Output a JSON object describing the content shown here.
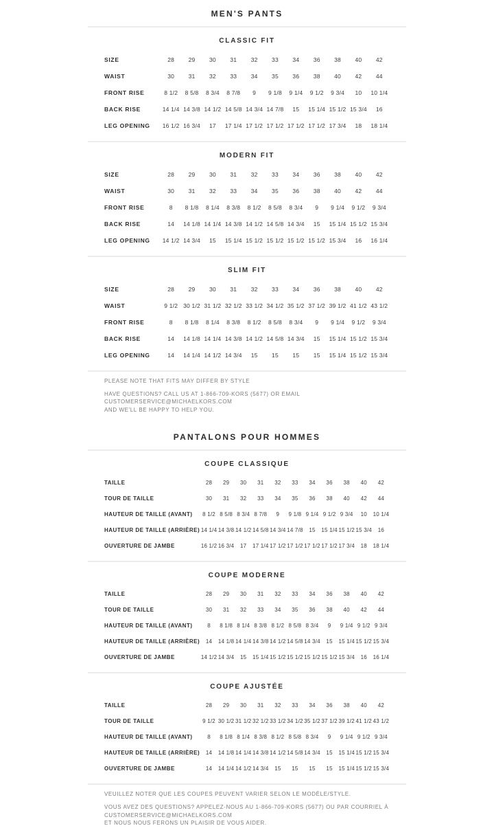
{
  "header_en": {
    "title": "MEN'S PANTS"
  },
  "header_fr": {
    "title": "PANTALONS POUR HOMMES"
  },
  "sections_en": [
    {
      "title": "CLASSIC FIT",
      "rows": [
        {
          "label": "SIZE",
          "values": [
            "28",
            "29",
            "30",
            "31",
            "32",
            "33",
            "34",
            "36",
            "38",
            "40",
            "42"
          ]
        },
        {
          "label": "WAIST",
          "values": [
            "30",
            "31",
            "32",
            "33",
            "34",
            "35",
            "36",
            "38",
            "40",
            "42",
            "44"
          ]
        },
        {
          "label": "FRONT RISE",
          "values": [
            "8 1/2",
            "8 5/8",
            "8 3/4",
            "8 7/8",
            "9",
            "9 1/8",
            "9 1/4",
            "9 1/2",
            "9 3/4",
            "10",
            "10 1/4"
          ]
        },
        {
          "label": "BACK RISE",
          "values": [
            "14 1/4",
            "14 3/8",
            "14 1/2",
            "14 5/8",
            "14 3/4",
            "14 7/8",
            "15",
            "15 1/4",
            "15 1/2",
            "15 3/4",
            "16"
          ]
        },
        {
          "label": "LEG OPENING",
          "values": [
            "16 1/2",
            "16 3/4",
            "17",
            "17 1/4",
            "17 1/2",
            "17 1/2",
            "17 1/2",
            "17 1/2",
            "17 3/4",
            "18",
            "18 1/4"
          ]
        }
      ]
    },
    {
      "title": "MODERN FIT",
      "rows": [
        {
          "label": "SIZE",
          "values": [
            "28",
            "29",
            "30",
            "31",
            "32",
            "33",
            "34",
            "36",
            "38",
            "40",
            "42"
          ]
        },
        {
          "label": "WAIST",
          "values": [
            "30",
            "31",
            "32",
            "33",
            "34",
            "35",
            "36",
            "38",
            "40",
            "42",
            "44"
          ]
        },
        {
          "label": "FRONT RISE",
          "values": [
            "8",
            "8 1/8",
            "8 1/4",
            "8 3/8",
            "8 1/2",
            "8 5/8",
            "8 3/4",
            "9",
            "9 1/4",
            "9 1/2",
            "9 3/4"
          ]
        },
        {
          "label": "BACK RISE",
          "values": [
            "14",
            "14 1/8",
            "14 1/4",
            "14 3/8",
            "14 1/2",
            "14 5/8",
            "14 3/4",
            "15",
            "15 1/4",
            "15 1/2",
            "15 3/4"
          ]
        },
        {
          "label": "LEG OPENING",
          "values": [
            "14 1/2",
            "14 3/4",
            "15",
            "15 1/4",
            "15 1/2",
            "15 1/2",
            "15 1/2",
            "15 1/2",
            "15 3/4",
            "16",
            "16 1/4"
          ]
        }
      ]
    },
    {
      "title": "SLIM FIT",
      "rows": [
        {
          "label": "SIZE",
          "values": [
            "28",
            "29",
            "30",
            "31",
            "32",
            "33",
            "34",
            "36",
            "38",
            "40",
            "42"
          ]
        },
        {
          "label": "WAIST",
          "values": [
            "9 1/2",
            "30 1/2",
            "31 1/2",
            "32 1/2",
            "33 1/2",
            "34 1/2",
            "35 1/2",
            "37 1/2",
            "39 1/2",
            "41 1/2",
            "43 1/2"
          ]
        },
        {
          "label": "FRONT RISE",
          "values": [
            "8",
            "8 1/8",
            "8 1/4",
            "8 3/8",
            "8 1/2",
            "8 5/8",
            "8 3/4",
            "9",
            "9 1/4",
            "9 1/2",
            "9 3/4"
          ]
        },
        {
          "label": "BACK RISE",
          "values": [
            "14",
            "14 1/8",
            "14 1/4",
            "14 3/8",
            "14 1/2",
            "14 5/8",
            "14 3/4",
            "15",
            "15 1/4",
            "15 1/2",
            "15 3/4"
          ]
        },
        {
          "label": "LEG OPENING",
          "values": [
            "14",
            "14 1/4",
            "14 1/2",
            "14 3/4",
            "15",
            "15",
            "15",
            "15",
            "15 1/4",
            "15 1/2",
            "15 3/4"
          ]
        }
      ]
    }
  ],
  "notes_en": {
    "fit_note": "PLEASE NOTE THAT FITS MAY DIFFER BY STYLE",
    "contact_line1": "HAVE QUESTIONS? CALL US AT 1-866-709-KORS (5677) OR EMAIL CUSTOMERSERVICE@MICHAELKORS.COM",
    "contact_line2": "AND WE'LL BE HAPPY TO HELP YOU."
  },
  "sections_fr": [
    {
      "title": "COUPE CLASSIQUE",
      "rows": [
        {
          "label": "TAILLE",
          "values": [
            "28",
            "29",
            "30",
            "31",
            "32",
            "33",
            "34",
            "36",
            "38",
            "40",
            "42"
          ]
        },
        {
          "label": "TOUR DE TAILLE",
          "values": [
            "30",
            "31",
            "32",
            "33",
            "34",
            "35",
            "36",
            "38",
            "40",
            "42",
            "44"
          ]
        },
        {
          "label": "HAUTEUR DE TAILLE (AVANT)",
          "values": [
            "8 1/2",
            "8 5/8",
            "8 3/4",
            "8 7/8",
            "9",
            "9 1/8",
            "9 1/4",
            "9 1/2",
            "9 3/4",
            "10",
            "10 1/4"
          ]
        },
        {
          "label": "HAUTEUR DE TAILLE (ARRIÈRE)",
          "values": [
            "14 1/4",
            "14 3/8",
            "14 1/2",
            "14 5/8",
            "14 3/4",
            "14 7/8",
            "15",
            "15 1/4",
            "15 1/2",
            "15 3/4",
            "16"
          ]
        },
        {
          "label": "OUVERTURE DE JAMBE",
          "values": [
            "16 1/2",
            "16 3/4",
            "17",
            "17 1/4",
            "17 1/2",
            "17 1/2",
            "17 1/2",
            "17 1/2",
            "17 3/4",
            "18",
            "18 1/4"
          ]
        }
      ]
    },
    {
      "title": "COUPE MODERNE",
      "rows": [
        {
          "label": "TAILLE",
          "values": [
            "28",
            "29",
            "30",
            "31",
            "32",
            "33",
            "34",
            "36",
            "38",
            "40",
            "42"
          ]
        },
        {
          "label": "TOUR DE TAILLE",
          "values": [
            "30",
            "31",
            "32",
            "33",
            "34",
            "35",
            "36",
            "38",
            "40",
            "42",
            "44"
          ]
        },
        {
          "label": "HAUTEUR DE TAILLE (AVANT)",
          "values": [
            "8",
            "8 1/8",
            "8 1/4",
            "8 3/8",
            "8 1/2",
            "8 5/8",
            "8 3/4",
            "9",
            "9 1/4",
            "9 1/2",
            "9 3/4"
          ]
        },
        {
          "label": "HAUTEUR DE TAILLE (ARRIÈRE)",
          "values": [
            "14",
            "14 1/8",
            "14 1/4",
            "14 3/8",
            "14 1/2",
            "14 5/8",
            "14 3/4",
            "15",
            "15 1/4",
            "15 1/2",
            "15 3/4"
          ]
        },
        {
          "label": "OUVERTURE DE JAMBE",
          "values": [
            "14 1/2",
            "14 3/4",
            "15",
            "15 1/4",
            "15 1/2",
            "15 1/2",
            "15 1/2",
            "15 1/2",
            "15 3/4",
            "16",
            "16 1/4"
          ]
        }
      ]
    },
    {
      "title": "COUPE AJUSTÉE",
      "rows": [
        {
          "label": "TAILLE",
          "values": [
            "28",
            "29",
            "30",
            "31",
            "32",
            "33",
            "34",
            "36",
            "38",
            "40",
            "42"
          ]
        },
        {
          "label": "TOUR DE TAILLE",
          "values": [
            "9 1/2",
            "30 1/2",
            "31 1/2",
            "32 1/2",
            "33 1/2",
            "34 1/2",
            "35 1/2",
            "37 1/2",
            "39 1/2",
            "41 1/2",
            "43 1/2"
          ]
        },
        {
          "label": "HAUTEUR DE TAILLE (AVANT)",
          "values": [
            "8",
            "8 1/8",
            "8 1/4",
            "8 3/8",
            "8 1/2",
            "8 5/8",
            "8 3/4",
            "9",
            "9 1/4",
            "9 1/2",
            "9 3/4"
          ]
        },
        {
          "label": "HAUTEUR DE TAILLE (ARRIÈRE)",
          "values": [
            "14",
            "14 1/8",
            "14 1/4",
            "14 3/8",
            "14 1/2",
            "14 5/8",
            "14 3/4",
            "15",
            "15 1/4",
            "15 1/2",
            "15 3/4"
          ]
        },
        {
          "label": "OUVERTURE DE JAMBE",
          "values": [
            "14",
            "14 1/4",
            "14 1/2",
            "14 3/4",
            "15",
            "15",
            "15",
            "15",
            "15 1/4",
            "15 1/2",
            "15 3/4"
          ]
        }
      ]
    }
  ],
  "notes_fr": {
    "fit_note": "VEUILLEZ NOTER QUE LES COUPES PEUVENT VARIER SELON LE MODÈLE/STYLE.",
    "contact_line1": "VOUS AVEZ DES QUESTIONS? APPELEZ-NOUS AU 1-866-709-KORS (5677) OU PAR COURRIEL À CUSTOMERSERVICE@MICHAELKORS.COM",
    "contact_line2": "ET NOUS NOUS FERONS UN PLAISIR DE VOUS AIDER."
  }
}
